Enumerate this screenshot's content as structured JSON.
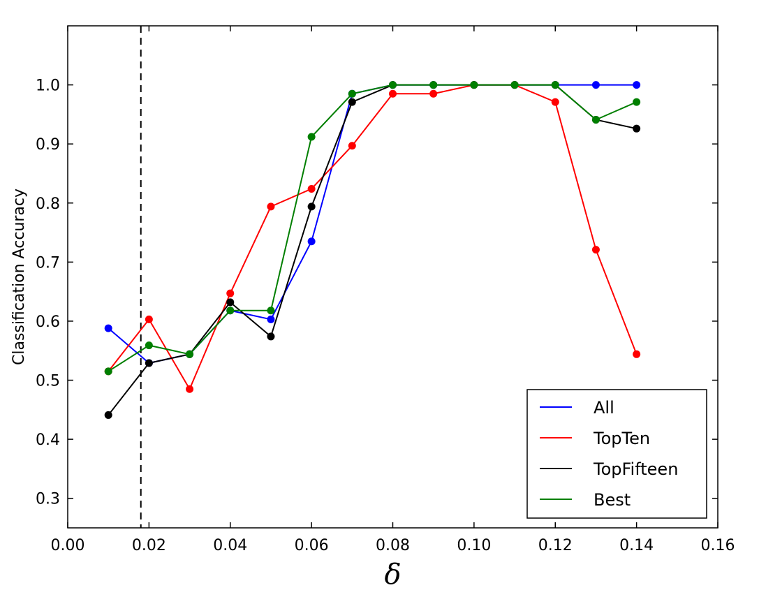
{
  "chart_data": {
    "type": "line",
    "title": "",
    "xlabel": "δ",
    "ylabel": "Classification Accuracy",
    "xlim": [
      0.0,
      0.16
    ],
    "ylim": [
      0.25,
      1.1
    ],
    "xticks": [
      0.0,
      0.02,
      0.04,
      0.06,
      0.08,
      0.1,
      0.12,
      0.14,
      0.16
    ],
    "xtick_labels": [
      "0.00",
      "0.02",
      "0.04",
      "0.06",
      "0.08",
      "0.10",
      "0.12",
      "0.14",
      "0.16"
    ],
    "yticks": [
      0.3,
      0.4,
      0.5,
      0.6,
      0.7,
      0.8,
      0.9,
      1.0
    ],
    "ytick_labels": [
      "0.3",
      "0.4",
      "0.5",
      "0.6",
      "0.7",
      "0.8",
      "0.9",
      "1.0"
    ],
    "grid": false,
    "legend_position": "bottom-right",
    "vline": {
      "x": 0.018,
      "style": "dashed",
      "color": "#000000"
    },
    "x": [
      0.01,
      0.02,
      0.03,
      0.04,
      0.05,
      0.06,
      0.07,
      0.08,
      0.09,
      0.1,
      0.11,
      0.12,
      0.13,
      0.14
    ],
    "series": [
      {
        "name": "All",
        "color": "#0000ff",
        "values": [
          0.588,
          0.529,
          0.544,
          0.618,
          0.603,
          0.735,
          0.985,
          1.0,
          1.0,
          1.0,
          1.0,
          1.0,
          1.0,
          1.0
        ]
      },
      {
        "name": "TopTen",
        "color": "#ff0000",
        "values": [
          0.515,
          0.603,
          0.485,
          0.647,
          0.794,
          0.824,
          0.897,
          0.985,
          0.985,
          1.0,
          1.0,
          0.971,
          0.721,
          0.544
        ]
      },
      {
        "name": "TopFifteen",
        "color": "#000000",
        "values": [
          0.441,
          0.529,
          0.544,
          0.632,
          0.574,
          0.794,
          0.971,
          1.0,
          1.0,
          1.0,
          1.0,
          1.0,
          0.941,
          0.926
        ]
      },
      {
        "name": "Best",
        "color": "#007f00",
        "values": [
          0.515,
          0.559,
          0.544,
          0.618,
          0.618,
          0.912,
          0.985,
          1.0,
          1.0,
          1.0,
          1.0,
          1.0,
          0.941,
          0.971
        ]
      }
    ]
  }
}
